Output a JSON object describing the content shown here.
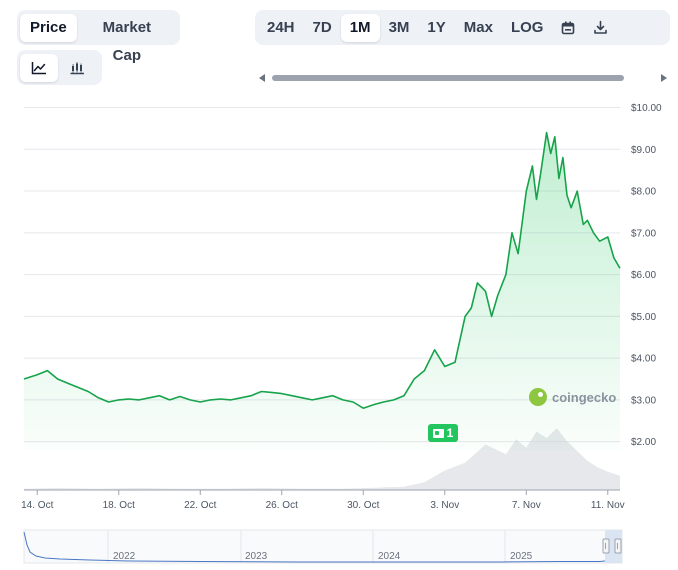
{
  "metric_tabs": [
    {
      "label": "Price",
      "active": true
    },
    {
      "label": "Market Cap",
      "active": false
    }
  ],
  "range_tabs": [
    {
      "label": "24H",
      "active": false
    },
    {
      "label": "7D",
      "active": false
    },
    {
      "label": "1M",
      "active": true
    },
    {
      "label": "3M",
      "active": false
    },
    {
      "label": "1Y",
      "active": false
    },
    {
      "label": "Max",
      "active": false
    },
    {
      "label": "LOG",
      "active": false
    }
  ],
  "range_icons": [
    "calendar-icon",
    "download-icon"
  ],
  "chart_type_icons": [
    "line-chart-icon",
    "candlestick-icon"
  ],
  "colors": {
    "line": "#16a34a",
    "area": "#22c55e",
    "volume": "#d1d5db",
    "navigator_line": "#4a77c5",
    "badge": "#22c55e"
  },
  "badge": {
    "count": "1"
  },
  "watermark": {
    "text": "coingecko"
  },
  "navigator": {
    "years": [
      "2022",
      "2023",
      "2024",
      "2025"
    ]
  },
  "chart_data": {
    "type": "line",
    "title": "",
    "xlabel": "",
    "ylabel": "",
    "y_axis_position": "right",
    "ylim": [
      1.8,
      10.3
    ],
    "yticks": [
      "$10.00",
      "$9.00",
      "$8.00",
      "$7.00",
      "$6.00",
      "$5.00",
      "$4.00",
      "$3.00",
      "$2.00"
    ],
    "yvalues": [
      10,
      9,
      8,
      7,
      6,
      5,
      4,
      3,
      2
    ],
    "xticks": [
      "14. Oct",
      "18. Oct",
      "22. Oct",
      "26. Oct",
      "30. Oct",
      "3. Nov",
      "7. Nov",
      "11. Nov"
    ],
    "xdays": [
      1,
      5,
      9,
      13,
      17,
      21,
      25,
      29
    ],
    "xlim": [
      0.35,
      29.6
    ],
    "grid": true,
    "series": [
      {
        "x": [
          0.35,
          1,
          1.5,
          2,
          2.5,
          3,
          3.5,
          4,
          4.5,
          5,
          5.5,
          6,
          6.5,
          7,
          7.5,
          8,
          8.5,
          9,
          9.5,
          10,
          10.5,
          11,
          11.5,
          12,
          12.5,
          13,
          13.5,
          14,
          14.5,
          15,
          15.5,
          16,
          16.5,
          17,
          17.3,
          17.6,
          18,
          18.5,
          19,
          19.5,
          20,
          20.5,
          21,
          21.5,
          22,
          22.3,
          22.6,
          23,
          23.3,
          23.6,
          24,
          24.3,
          24.6,
          25,
          25.3,
          25.5,
          25.7,
          26,
          26.2,
          26.4,
          26.6,
          26.8,
          27,
          27.2,
          27.5,
          27.8,
          28,
          28.3,
          28.6,
          29,
          29.3,
          29.6
        ],
        "y": [
          3.5,
          3.6,
          3.7,
          3.5,
          3.4,
          3.3,
          3.2,
          3.05,
          2.95,
          3.0,
          3.02,
          3.0,
          3.05,
          3.1,
          3.0,
          3.08,
          3.0,
          2.95,
          3.0,
          3.02,
          3.0,
          3.05,
          3.1,
          3.2,
          3.18,
          3.15,
          3.1,
          3.05,
          3.0,
          3.05,
          3.1,
          3.0,
          2.95,
          2.8,
          2.85,
          2.9,
          2.95,
          3.0,
          3.1,
          3.5,
          3.7,
          4.2,
          3.8,
          3.9,
          5.0,
          5.2,
          5.8,
          5.6,
          5.0,
          5.5,
          6.0,
          7.0,
          6.5,
          8.0,
          8.6,
          7.8,
          8.4,
          9.4,
          8.9,
          9.3,
          8.3,
          8.8,
          7.9,
          7.6,
          8.0,
          7.2,
          7.3,
          7.0,
          6.8,
          6.9,
          6.4,
          6.15
        ]
      }
    ],
    "volume": {
      "x": [
        0.35,
        2,
        4,
        6,
        8,
        10,
        12,
        14,
        16,
        17,
        18,
        19,
        20,
        21,
        22,
        23,
        24,
        24.5,
        25,
        25.5,
        26,
        26.5,
        27,
        27.5,
        28,
        28.5,
        29,
        29.6
      ],
      "values": [
        0.02,
        0.03,
        0.02,
        0.03,
        0.02,
        0.02,
        0.03,
        0.02,
        0.02,
        0.03,
        0.04,
        0.05,
        0.12,
        0.3,
        0.42,
        0.7,
        0.55,
        0.78,
        0.65,
        0.9,
        0.8,
        0.95,
        0.75,
        0.6,
        0.45,
        0.35,
        0.28,
        0.22
      ]
    }
  }
}
